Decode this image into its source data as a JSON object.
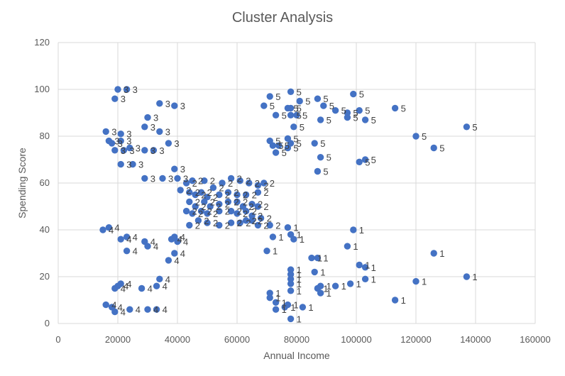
{
  "chart_data": {
    "type": "scatter",
    "title": "Cluster Analysis",
    "xlabel": "Annual Income",
    "ylabel": "Spending Score",
    "xlim": [
      0,
      160000
    ],
    "ylim": [
      0,
      120
    ],
    "x_ticks": [
      "0",
      "20000",
      "40000",
      "60000",
      "80000",
      "100000",
      "120000",
      "140000",
      "160000"
    ],
    "y_ticks": [
      "0",
      "20",
      "40",
      "60",
      "80",
      "100",
      "120"
    ],
    "grid": true,
    "legend": "none",
    "colors": {
      "point": "#4472c4",
      "grid": "#d9d9d9",
      "text": "#595959"
    },
    "series": [
      {
        "points": [
          [
            20000,
            100,
            "3"
          ],
          [
            23000,
            100,
            "3"
          ],
          [
            19000,
            96,
            "3"
          ],
          [
            34000,
            94,
            "3"
          ],
          [
            39000,
            93,
            "3"
          ],
          [
            30000,
            88,
            "3"
          ],
          [
            29000,
            84,
            "3"
          ],
          [
            34000,
            82,
            "3"
          ],
          [
            16000,
            82,
            "3"
          ],
          [
            21000,
            81,
            "3"
          ],
          [
            21000,
            78,
            "3"
          ],
          [
            17000,
            78,
            "3"
          ],
          [
            18000,
            77,
            "3"
          ],
          [
            37000,
            77,
            "3"
          ],
          [
            24000,
            75,
            "3"
          ],
          [
            22000,
            74,
            "3"
          ],
          [
            19000,
            74,
            "3"
          ],
          [
            32000,
            74,
            "3"
          ],
          [
            29000,
            74,
            "3"
          ],
          [
            25000,
            68,
            "3"
          ],
          [
            21000,
            68,
            "3"
          ],
          [
            39000,
            66,
            "3"
          ],
          [
            40000,
            62,
            "3"
          ],
          [
            29000,
            62,
            "3"
          ],
          [
            35000,
            62,
            "3"
          ],
          [
            78000,
            99,
            "5"
          ],
          [
            71000,
            97,
            "5"
          ],
          [
            87000,
            96,
            "5"
          ],
          [
            78000,
            92,
            "5"
          ],
          [
            99000,
            98,
            "5"
          ],
          [
            69000,
            93,
            "5"
          ],
          [
            77000,
            92,
            "5"
          ],
          [
            89000,
            93,
            "5"
          ],
          [
            81000,
            95,
            "5"
          ],
          [
            93000,
            91,
            "5"
          ],
          [
            97000,
            90,
            "5"
          ],
          [
            78000,
            89,
            "5"
          ],
          [
            80000,
            89,
            "5"
          ],
          [
            73000,
            89,
            "5"
          ],
          [
            88000,
            87,
            "5"
          ],
          [
            101000,
            91,
            "5"
          ],
          [
            113000,
            92,
            "5"
          ],
          [
            103000,
            87,
            "5"
          ],
          [
            97000,
            88,
            "5"
          ],
          [
            79000,
            84,
            "5"
          ],
          [
            137000,
            84,
            "5"
          ],
          [
            120000,
            80,
            "5"
          ],
          [
            126000,
            75,
            "5"
          ],
          [
            77000,
            79,
            "5"
          ],
          [
            71000,
            78,
            "5"
          ],
          [
            72000,
            76,
            "5"
          ],
          [
            74000,
            76,
            "5"
          ],
          [
            78000,
            77,
            "5"
          ],
          [
            86000,
            77,
            "5"
          ],
          [
            77000,
            75,
            "5"
          ],
          [
            73000,
            73,
            "5"
          ],
          [
            88000,
            71,
            "5"
          ],
          [
            101000,
            69,
            "5"
          ],
          [
            103000,
            70,
            "5"
          ],
          [
            87000,
            65,
            "5"
          ],
          [
            15000,
            40,
            "4"
          ],
          [
            17000,
            41,
            "4"
          ],
          [
            23000,
            37,
            "4"
          ],
          [
            21000,
            36,
            "4"
          ],
          [
            29000,
            35,
            "4"
          ],
          [
            30000,
            33,
            "4"
          ],
          [
            23000,
            31,
            "4"
          ],
          [
            38000,
            36,
            "4"
          ],
          [
            39000,
            37,
            "4"
          ],
          [
            40000,
            35,
            "4"
          ],
          [
            39000,
            30,
            "4"
          ],
          [
            37000,
            27,
            "4"
          ],
          [
            34000,
            19,
            "4"
          ],
          [
            33000,
            16,
            "4"
          ],
          [
            20000,
            16,
            "4"
          ],
          [
            21000,
            17,
            "4"
          ],
          [
            19000,
            15,
            "4"
          ],
          [
            28000,
            15,
            "4"
          ],
          [
            16000,
            8,
            "4"
          ],
          [
            18000,
            7,
            "4"
          ],
          [
            19000,
            5,
            "4"
          ],
          [
            24000,
            6,
            "4"
          ],
          [
            30000,
            6,
            "4"
          ],
          [
            33000,
            6,
            "4"
          ],
          [
            77000,
            41,
            "1"
          ],
          [
            78000,
            38,
            "1"
          ],
          [
            72000,
            37,
            "1"
          ],
          [
            79000,
            36,
            "1"
          ],
          [
            99000,
            40,
            "1"
          ],
          [
            97000,
            33,
            "1"
          ],
          [
            70000,
            31,
            "1"
          ],
          [
            85000,
            28,
            "1"
          ],
          [
            87000,
            28,
            "1"
          ],
          [
            126000,
            30,
            "1"
          ],
          [
            101000,
            25,
            "1"
          ],
          [
            103000,
            24,
            "1"
          ],
          [
            86000,
            22,
            "1"
          ],
          [
            78000,
            23,
            "1"
          ],
          [
            78000,
            21,
            "1"
          ],
          [
            78000,
            19,
            "1"
          ],
          [
            78000,
            17,
            "1"
          ],
          [
            103000,
            19,
            "1"
          ],
          [
            120000,
            18,
            "1"
          ],
          [
            137000,
            20,
            "1"
          ],
          [
            88000,
            16,
            "1"
          ],
          [
            93000,
            16,
            "1"
          ],
          [
            98000,
            17,
            "1"
          ],
          [
            87000,
            15,
            "1"
          ],
          [
            78000,
            14,
            "1"
          ],
          [
            88000,
            13,
            "1"
          ],
          [
            71000,
            13,
            "1"
          ],
          [
            71000,
            11,
            "1"
          ],
          [
            73000,
            9,
            "1"
          ],
          [
            113000,
            10,
            "1"
          ],
          [
            77000,
            8,
            "1"
          ],
          [
            73000,
            6,
            "1"
          ],
          [
            76000,
            7,
            "1"
          ],
          [
            82000,
            7,
            "1"
          ],
          [
            78000,
            2,
            "1"
          ],
          [
            43000,
            60,
            "2"
          ],
          [
            45000,
            61,
            "2"
          ],
          [
            49000,
            61,
            "2"
          ],
          [
            52000,
            58,
            "2"
          ],
          [
            55000,
            60,
            "2"
          ],
          [
            58000,
            62,
            "2"
          ],
          [
            61000,
            61,
            "2"
          ],
          [
            64000,
            60,
            "2"
          ],
          [
            67000,
            59,
            "2"
          ],
          [
            69000,
            60,
            "2"
          ],
          [
            41000,
            57,
            "2"
          ],
          [
            44000,
            56,
            "2"
          ],
          [
            46000,
            55,
            "2"
          ],
          [
            48000,
            56,
            "2"
          ],
          [
            50000,
            54,
            "2"
          ],
          [
            54000,
            55,
            "2"
          ],
          [
            57000,
            56,
            "2"
          ],
          [
            60000,
            55,
            "2"
          ],
          [
            63000,
            55,
            "2"
          ],
          [
            67000,
            56,
            "2"
          ],
          [
            44000,
            52,
            "2"
          ],
          [
            46000,
            50,
            "2"
          ],
          [
            49000,
            52,
            "2"
          ],
          [
            51000,
            50,
            "2"
          ],
          [
            54000,
            51,
            "2"
          ],
          [
            57000,
            52,
            "2"
          ],
          [
            60000,
            52,
            "2"
          ],
          [
            62000,
            50,
            "2"
          ],
          [
            65000,
            51,
            "2"
          ],
          [
            67000,
            50,
            "2"
          ],
          [
            43000,
            48,
            "2"
          ],
          [
            45000,
            47,
            "2"
          ],
          [
            48000,
            48,
            "2"
          ],
          [
            50000,
            47,
            "2"
          ],
          [
            54000,
            48,
            "2"
          ],
          [
            58000,
            48,
            "2"
          ],
          [
            60000,
            47,
            "2"
          ],
          [
            63000,
            48,
            "2"
          ],
          [
            65000,
            46,
            "2"
          ],
          [
            68000,
            45,
            "2"
          ],
          [
            44000,
            42,
            "2"
          ],
          [
            47000,
            44,
            "2"
          ],
          [
            50000,
            43,
            "2"
          ],
          [
            54000,
            42,
            "2"
          ],
          [
            58000,
            43,
            "2"
          ],
          [
            61000,
            43,
            "2"
          ],
          [
            63000,
            44,
            "2"
          ],
          [
            65000,
            44,
            "2"
          ],
          [
            67000,
            42,
            "2"
          ],
          [
            71000,
            42,
            "2"
          ]
        ]
      }
    ]
  }
}
